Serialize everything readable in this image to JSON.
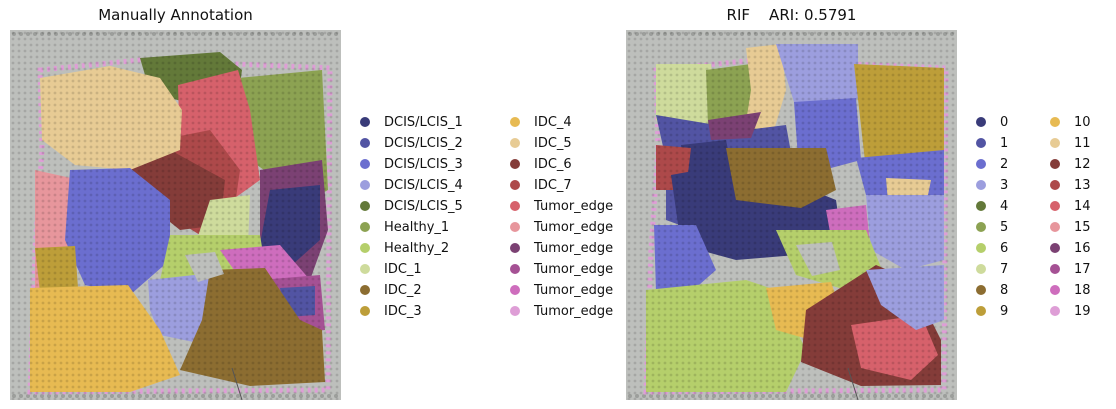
{
  "panels": {
    "left": {
      "title": "Manually Annotation"
    },
    "right": {
      "title": "RIF    ARI: 0.5791"
    }
  },
  "palette": {
    "tissue_background": "#bdbfbc",
    "fiducial_dot": "#9c9e9b",
    "spot_center": "#e7a1d9"
  },
  "legend_left": [
    {
      "label": "DCIS/LCIS_1",
      "color": "#393b79"
    },
    {
      "label": "DCIS/LCIS_2",
      "color": "#5254a3"
    },
    {
      "label": "DCIS/LCIS_3",
      "color": "#6b6ecf"
    },
    {
      "label": "DCIS/LCIS_4",
      "color": "#9c9ede"
    },
    {
      "label": "DCIS/LCIS_5",
      "color": "#637939"
    },
    {
      "label": "Healthy_1",
      "color": "#8ca252"
    },
    {
      "label": "Healthy_2",
      "color": "#b5cf6b"
    },
    {
      "label": "IDC_1",
      "color": "#cedb9c"
    },
    {
      "label": "IDC_2",
      "color": "#8c6d31"
    },
    {
      "label": "IDC_3",
      "color": "#bd9e39"
    },
    {
      "label": "IDC_4",
      "color": "#e7ba52"
    },
    {
      "label": "IDC_5",
      "color": "#e7cb94"
    },
    {
      "label": "IDC_6",
      "color": "#843c39"
    },
    {
      "label": "IDC_7",
      "color": "#ad494a"
    },
    {
      "label": "Tumor_edge",
      "color": "#d6616b"
    },
    {
      "label": "Tumor_edge",
      "color": "#e7969c"
    },
    {
      "label": "Tumor_edge",
      "color": "#7b4173"
    },
    {
      "label": "Tumor_edge",
      "color": "#a55194"
    },
    {
      "label": "Tumor_edge",
      "color": "#ce6dbd"
    },
    {
      "label": "Tumor_edge",
      "color": "#de9ed6"
    }
  ],
  "legend_right": [
    {
      "label": "0",
      "color": "#393b79"
    },
    {
      "label": "1",
      "color": "#5254a3"
    },
    {
      "label": "2",
      "color": "#6b6ecf"
    },
    {
      "label": "3",
      "color": "#9c9ede"
    },
    {
      "label": "4",
      "color": "#637939"
    },
    {
      "label": "5",
      "color": "#8ca252"
    },
    {
      "label": "6",
      "color": "#b5cf6b"
    },
    {
      "label": "7",
      "color": "#cedb9c"
    },
    {
      "label": "8",
      "color": "#8c6d31"
    },
    {
      "label": "9",
      "color": "#bd9e39"
    },
    {
      "label": "10",
      "color": "#e7ba52"
    },
    {
      "label": "11",
      "color": "#e7cb94"
    },
    {
      "label": "12",
      "color": "#843c39"
    },
    {
      "label": "13",
      "color": "#ad494a"
    },
    {
      "label": "14",
      "color": "#d6616b"
    },
    {
      "label": "15",
      "color": "#e7969c"
    },
    {
      "label": "16",
      "color": "#7b4173"
    },
    {
      "label": "17",
      "color": "#a55194"
    },
    {
      "label": "18",
      "color": "#ce6dbd"
    },
    {
      "label": "19",
      "color": "#de9ed6"
    }
  ]
}
